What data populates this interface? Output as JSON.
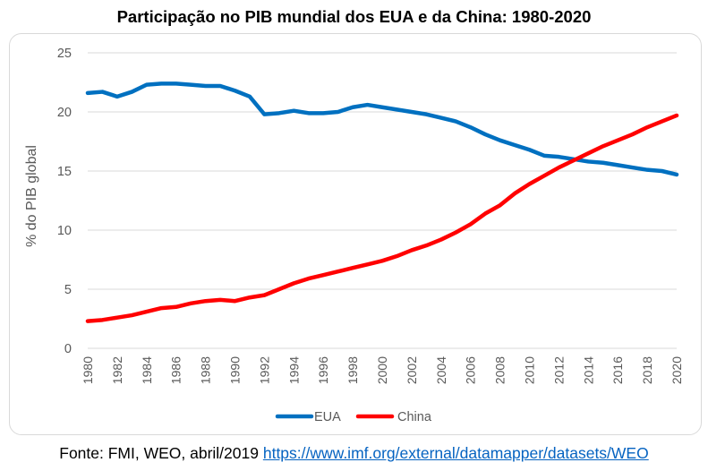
{
  "chart_data": {
    "type": "line",
    "title": "Participação no PIB mundial dos EUA e da China: 1980-2020",
    "ylabel": "% do PIB global",
    "xlabel": "",
    "ylim": [
      0,
      25
    ],
    "yticks": [
      0,
      5,
      10,
      15,
      20,
      25
    ],
    "xticks": [
      1980,
      1982,
      1984,
      1986,
      1988,
      1990,
      1992,
      1994,
      1996,
      1998,
      2000,
      2002,
      2004,
      2006,
      2008,
      2010,
      2012,
      2014,
      2016,
      2018,
      2020
    ],
    "x": [
      1980,
      1981,
      1982,
      1983,
      1984,
      1985,
      1986,
      1987,
      1988,
      1989,
      1990,
      1991,
      1992,
      1993,
      1994,
      1995,
      1996,
      1997,
      1998,
      1999,
      2000,
      2001,
      2002,
      2003,
      2004,
      2005,
      2006,
      2007,
      2008,
      2009,
      2010,
      2011,
      2012,
      2013,
      2014,
      2015,
      2016,
      2017,
      2018,
      2019,
      2020
    ],
    "series": [
      {
        "name": "EUA",
        "color": "#0070c0",
        "values": [
          21.6,
          21.7,
          21.3,
          21.7,
          22.3,
          22.4,
          22.4,
          22.3,
          22.2,
          22.2,
          21.8,
          21.3,
          19.8,
          19.9,
          20.1,
          19.9,
          19.9,
          20.0,
          20.4,
          20.6,
          20.4,
          20.2,
          20.0,
          19.8,
          19.5,
          19.2,
          18.7,
          18.1,
          17.6,
          17.2,
          16.8,
          16.3,
          16.2,
          16.0,
          15.8,
          15.7,
          15.5,
          15.3,
          15.1,
          15.0,
          14.7
        ]
      },
      {
        "name": "China",
        "color": "#ff0000",
        "values": [
          2.3,
          2.4,
          2.6,
          2.8,
          3.1,
          3.4,
          3.5,
          3.8,
          4.0,
          4.1,
          4.0,
          4.3,
          4.5,
          5.0,
          5.5,
          5.9,
          6.2,
          6.5,
          6.8,
          7.1,
          7.4,
          7.8,
          8.3,
          8.7,
          9.2,
          9.8,
          10.5,
          11.4,
          12.1,
          13.1,
          13.9,
          14.6,
          15.3,
          15.9,
          16.5,
          17.1,
          17.6,
          18.1,
          18.7,
          19.2,
          19.7
        ]
      }
    ],
    "legend": "bottom",
    "grid": true
  },
  "footer": {
    "source_text": "Fonte: FMI, WEO, abril/2019",
    "link_text": "https://www.imf.org/external/datamapper/datasets/WEO"
  }
}
